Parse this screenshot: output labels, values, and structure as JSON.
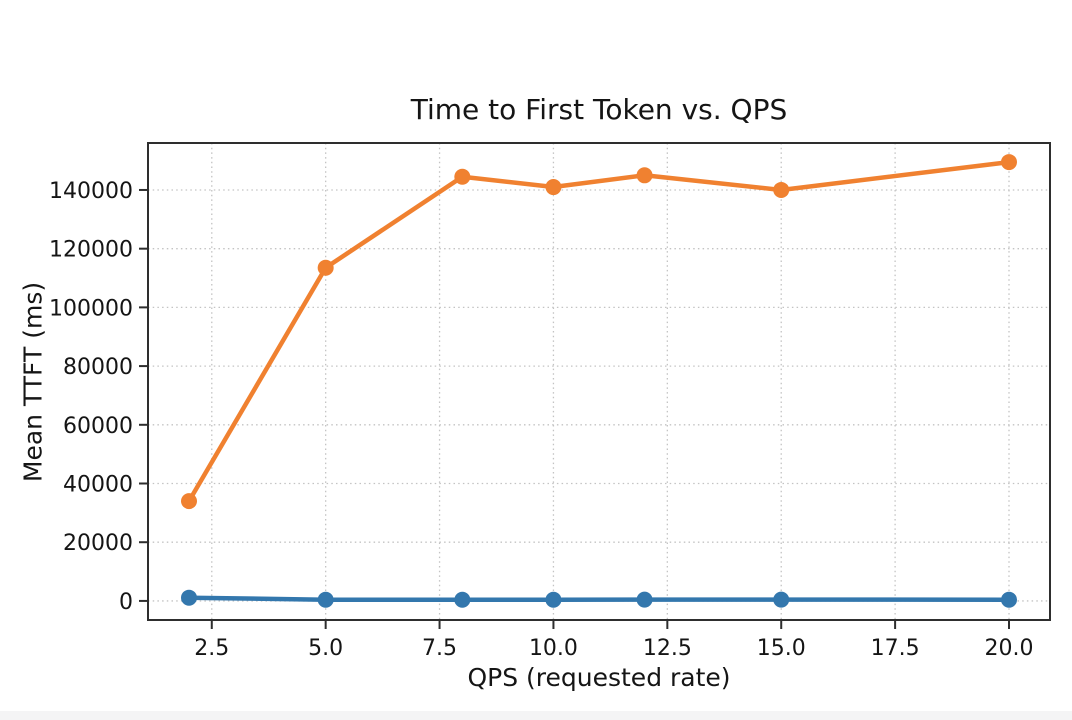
{
  "page": {
    "background_color": "#ffffff",
    "bottom_bar_color": "#f4f4f5",
    "text_color": "#151515",
    "grid_color": "#c3c3c3",
    "spine_color": "#2e2e2e"
  },
  "chart_data": {
    "type": "line",
    "title": "Time to First Token vs. QPS",
    "xlabel": "QPS (requested rate)",
    "ylabel": "Mean TTFT (ms)",
    "x": [
      2,
      5,
      8,
      10,
      12,
      15,
      20
    ],
    "series": [
      {
        "name": "blue-series",
        "color": "#3377ad",
        "values": [
          1100,
          400,
          400,
          400,
          450,
          450,
          400
        ]
      },
      {
        "name": "orange-series",
        "color": "#f08130",
        "values": [
          34000,
          113500,
          144500,
          141000,
          145000,
          140000,
          149500
        ]
      }
    ],
    "xticks": [
      2.5,
      5.0,
      7.5,
      10.0,
      12.5,
      15.0,
      17.5,
      20.0
    ],
    "xtick_labels": [
      "2.5",
      "5.0",
      "7.5",
      "10.0",
      "12.5",
      "15.0",
      "17.5",
      "20.0"
    ],
    "yticks": [
      0,
      20000,
      40000,
      60000,
      80000,
      100000,
      120000,
      140000
    ],
    "ytick_labels": [
      "0",
      "20000",
      "40000",
      "60000",
      "80000",
      "100000",
      "120000",
      "140000"
    ],
    "xlim": [
      1.1,
      20.9
    ],
    "ylim": [
      -6500,
      156000
    ],
    "grid": true,
    "grid_style": "dotted",
    "legend_position": "none"
  }
}
